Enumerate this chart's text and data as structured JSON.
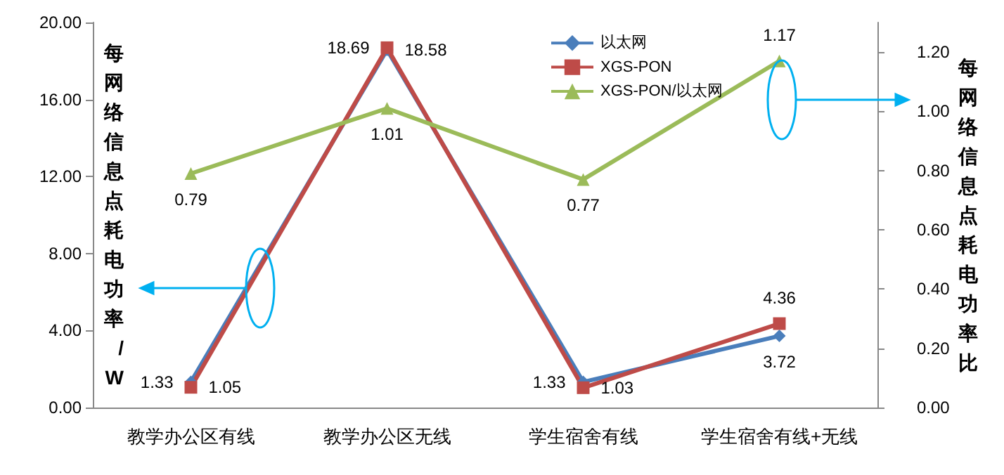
{
  "chart_data": {
    "type": "line",
    "categories": [
      "教学办公区有线",
      "教学办公区无线",
      "学生宿舍有线",
      "学生宿舍有线+无线"
    ],
    "series": [
      {
        "name": "以太网",
        "color": "#4a7ebb",
        "marker": "diamond",
        "values": [
          1.33,
          18.58,
          1.33,
          3.72
        ]
      },
      {
        "name": "XGS-PON",
        "color": "#be4b48",
        "marker": "square",
        "values": [
          1.05,
          18.69,
          1.03,
          4.36
        ]
      },
      {
        "name": "XGS-PON/以太网",
        "color": "#9bbb59",
        "marker": "triangle",
        "axis": "y2",
        "values": [
          0.79,
          1.01,
          0.77,
          1.17
        ]
      }
    ],
    "ylabel": "每网络信息点耗电功率/W",
    "y2label": "每网络信息点耗电功率比",
    "ylim": [
      0,
      20
    ],
    "yticks": [
      {
        "value": 0,
        "label": "0.00"
      },
      {
        "value": 4,
        "label": "4.00"
      },
      {
        "value": 8,
        "label": "8.00"
      },
      {
        "value": 12,
        "label": "12.00"
      },
      {
        "value": 16,
        "label": "16.00"
      },
      {
        "value": 20,
        "label": "20.00"
      }
    ],
    "y2lim": [
      0,
      1.3
    ],
    "y2ticks": [
      {
        "value": 0,
        "label": "0.00"
      },
      {
        "value": 0.2,
        "label": "0.20"
      },
      {
        "value": 0.4,
        "label": "0.40"
      },
      {
        "value": 0.6,
        "label": "0.60"
      },
      {
        "value": 0.8,
        "label": "0.80"
      },
      {
        "value": 1,
        "label": "1.00"
      },
      {
        "value": 1.2,
        "label": "1.20"
      }
    ],
    "data_labels": true,
    "grid": false,
    "legend": "top",
    "line_style": "solid"
  }
}
